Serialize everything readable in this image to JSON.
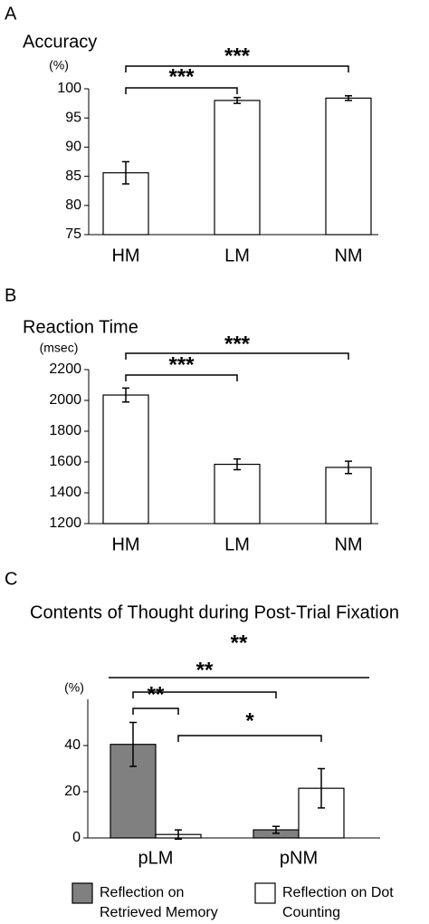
{
  "chart_data": [
    {
      "type": "bar",
      "panel": "A",
      "title": "Accuracy",
      "unit": "(%)",
      "categories": [
        "HM",
        "LM",
        "NM"
      ],
      "values": [
        85.6,
        98.0,
        98.4
      ],
      "errors": [
        1.9,
        0.5,
        0.4
      ],
      "color": "#ffffff",
      "ylim": [
        75,
        100
      ],
      "yticks": [
        75,
        80,
        85,
        90,
        95,
        100
      ],
      "significance": [
        {
          "from": [
            0,
            0
          ],
          "to": [
            0,
            1
          ],
          "label": "***"
        },
        {
          "from": [
            0,
            0
          ],
          "to": [
            0,
            2
          ],
          "label": "***"
        }
      ]
    },
    {
      "type": "bar",
      "panel": "B",
      "title": "Reaction Time",
      "unit": "(msec)",
      "categories": [
        "HM",
        "LM",
        "NM"
      ],
      "values": [
        2035,
        1585,
        1565
      ],
      "errors": [
        45,
        35,
        40
      ],
      "color": "#ffffff",
      "ylim": [
        1200,
        2200
      ],
      "yticks": [
        1200,
        1400,
        1600,
        1800,
        2000,
        2200
      ],
      "significance": [
        {
          "from": [
            0,
            0
          ],
          "to": [
            0,
            1
          ],
          "label": "***"
        },
        {
          "from": [
            0,
            0
          ],
          "to": [
            0,
            2
          ],
          "label": "***"
        }
      ]
    },
    {
      "type": "bar",
      "panel": "C",
      "title": "Contents of Thought during Post-Trial Fixation",
      "unit": "(%)",
      "categories": [
        "pLM",
        "pNM"
      ],
      "series": [
        {
          "name": "Reflection on Retrieved Memory",
          "color": "#808080",
          "values": [
            40.5,
            3.5
          ],
          "errors": [
            9.5,
            1.5
          ]
        },
        {
          "name": "Reflection on Dot Counting",
          "color": "#ffffff",
          "values": [
            1.5,
            21.5
          ],
          "errors": [
            2,
            8.5
          ]
        }
      ],
      "ylim": [
        0,
        60
      ],
      "yticks": [
        0,
        20,
        40
      ],
      "significance": [
        {
          "from": [
            0,
            0
          ],
          "to": [
            1,
            1
          ],
          "label": "**"
        },
        {
          "from": [
            0,
            0
          ],
          "to": [
            0,
            1
          ],
          "label": "**"
        },
        {
          "from": [
            0,
            0
          ],
          "to": [
            1,
            0
          ],
          "label": "**"
        },
        {
          "from": [
            1,
            0
          ],
          "to": [
            1,
            1
          ],
          "label": "*"
        }
      ]
    }
  ]
}
